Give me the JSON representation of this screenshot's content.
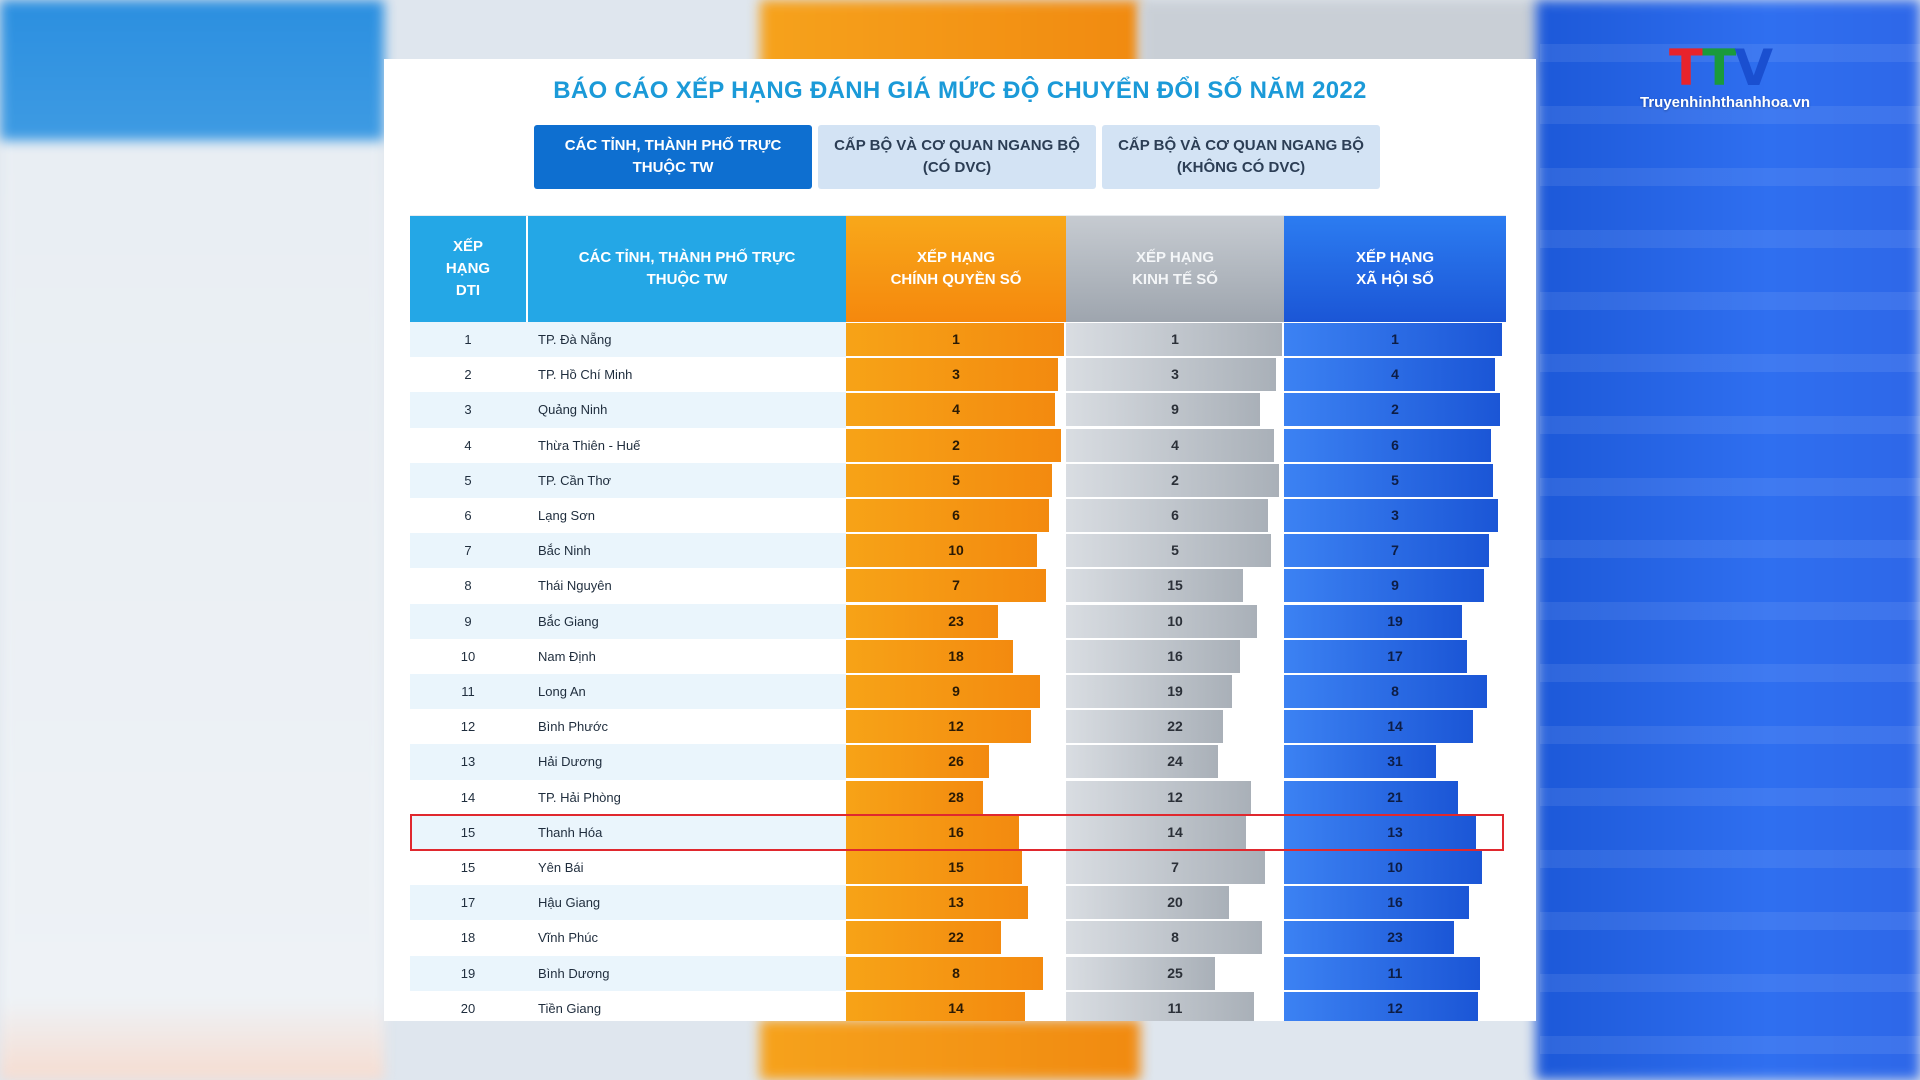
{
  "logo": {
    "mark_t1": "T",
    "mark_t2": "T",
    "mark_v": "V",
    "site": "Truyenhinhthanhhoa.vn"
  },
  "report": {
    "title": "BÁO CÁO XẾP HẠNG ĐÁNH GIÁ MỨC ĐỘ CHUYỂN ĐỔI SỐ NĂM 2022",
    "tabs": [
      {
        "label": "CÁC TỈNH, THÀNH PHỐ TRỰC\nTHUỘC TW",
        "active": true
      },
      {
        "label": "CẤP BỘ VÀ CƠ QUAN NGANG BỘ\n(CÓ DVC)",
        "active": false
      },
      {
        "label": "CẤP BỘ VÀ CƠ QUAN NGANG BỘ\n(KHÔNG CÓ DVC)",
        "active": false
      }
    ]
  },
  "colors": {
    "orange": "#f5880d",
    "grey": "#a9b0b8",
    "blue": "#1b56d6",
    "header_blue": "#24a7e6",
    "highlight": "#e0282e"
  },
  "chart_data": {
    "type": "table",
    "columns": [
      "XẾP\nHẠNG\nDTI",
      "CÁC TỈNH, THÀNH PHỐ TRỰC\nTHUỘC TW",
      "XẾP HẠNG\nCHÍNH QUYỀN SỐ",
      "XẾP HẠNG\nKINH TẾ SỐ",
      "XẾP HẠNG\nXÃ HỘI SỐ"
    ],
    "highlighted_row": 14,
    "rows": [
      {
        "rank": "1",
        "name": "TP. Đà Nẵng",
        "cq": 1,
        "kt": 1,
        "xh": 1
      },
      {
        "rank": "2",
        "name": "TP. Hồ Chí Minh",
        "cq": 3,
        "kt": 3,
        "xh": 4
      },
      {
        "rank": "3",
        "name": "Quảng Ninh",
        "cq": 4,
        "kt": 9,
        "xh": 2
      },
      {
        "rank": "4",
        "name": "Thừa Thiên - Huế",
        "cq": 2,
        "kt": 4,
        "xh": 6
      },
      {
        "rank": "5",
        "name": "TP. Cần Thơ",
        "cq": 5,
        "kt": 2,
        "xh": 5
      },
      {
        "rank": "6",
        "name": "Lạng Sơn",
        "cq": 6,
        "kt": 6,
        "xh": 3
      },
      {
        "rank": "7",
        "name": "Bắc Ninh",
        "cq": 10,
        "kt": 5,
        "xh": 7
      },
      {
        "rank": "8",
        "name": "Thái Nguyên",
        "cq": 7,
        "kt": 15,
        "xh": 9
      },
      {
        "rank": "9",
        "name": "Bắc Giang",
        "cq": 23,
        "kt": 10,
        "xh": 19
      },
      {
        "rank": "10",
        "name": "Nam Định",
        "cq": 18,
        "kt": 16,
        "xh": 17
      },
      {
        "rank": "11",
        "name": "Long An",
        "cq": 9,
        "kt": 19,
        "xh": 8
      },
      {
        "rank": "12",
        "name": "Bình Phước",
        "cq": 12,
        "kt": 22,
        "xh": 14
      },
      {
        "rank": "13",
        "name": "Hải Dương",
        "cq": 26,
        "kt": 24,
        "xh": 31
      },
      {
        "rank": "14",
        "name": "TP. Hải Phòng",
        "cq": 28,
        "kt": 12,
        "xh": 21
      },
      {
        "rank": "15",
        "name": "Thanh Hóa",
        "cq": 16,
        "kt": 14,
        "xh": 13
      },
      {
        "rank": "15",
        "name": "Yên Bái",
        "cq": 15,
        "kt": 7,
        "xh": 10
      },
      {
        "rank": "17",
        "name": "Hậu Giang",
        "cq": 13,
        "kt": 20,
        "xh": 16
      },
      {
        "rank": "18",
        "name": "Vĩnh Phúc",
        "cq": 22,
        "kt": 8,
        "xh": 23
      },
      {
        "rank": "19",
        "name": "Bình Dương",
        "cq": 8,
        "kt": 25,
        "xh": 11
      },
      {
        "rank": "20",
        "name": "Tiền Giang",
        "cq": 14,
        "kt": 11,
        "xh": 12
      }
    ]
  }
}
